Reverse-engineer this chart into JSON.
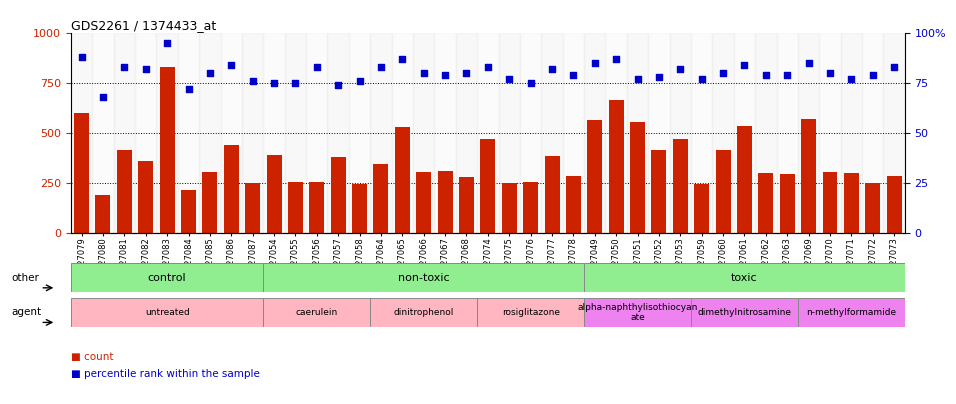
{
  "title": "GDS2261 / 1374433_at",
  "samples": [
    "GSM127079",
    "GSM127080",
    "GSM127081",
    "GSM127082",
    "GSM127083",
    "GSM127084",
    "GSM127085",
    "GSM127086",
    "GSM127087",
    "GSM127054",
    "GSM127055",
    "GSM127056",
    "GSM127057",
    "GSM127058",
    "GSM127064",
    "GSM127065",
    "GSM127066",
    "GSM127067",
    "GSM127068",
    "GSM127074",
    "GSM127075",
    "GSM127076",
    "GSM127077",
    "GSM127078",
    "GSM127049",
    "GSM127050",
    "GSM127051",
    "GSM127052",
    "GSM127053",
    "GSM127059",
    "GSM127060",
    "GSM127061",
    "GSM127062",
    "GSM127063",
    "GSM127069",
    "GSM127070",
    "GSM127071",
    "GSM127072",
    "GSM127073"
  ],
  "counts": [
    600,
    190,
    415,
    360,
    830,
    215,
    305,
    440,
    250,
    390,
    255,
    255,
    380,
    245,
    345,
    530,
    305,
    310,
    280,
    470,
    250,
    255,
    385,
    285,
    565,
    665,
    555,
    415,
    470,
    245,
    415,
    535,
    300,
    295,
    570,
    305,
    300,
    250,
    285
  ],
  "percentiles": [
    880,
    680,
    830,
    820,
    950,
    720,
    800,
    840,
    760,
    750,
    750,
    830,
    740,
    760,
    830,
    870,
    800,
    790,
    800,
    830,
    770,
    750,
    820,
    790,
    850,
    870,
    770,
    780,
    820,
    770,
    800,
    840,
    790,
    790,
    850,
    800,
    770,
    790,
    830
  ],
  "bar_color": "#cc2200",
  "dot_color": "#0000cc",
  "groups_other": [
    {
      "label": "control",
      "start": 0,
      "end": 9,
      "color": "#90ee90"
    },
    {
      "label": "non-toxic",
      "start": 9,
      "end": 24,
      "color": "#90ee90"
    },
    {
      "label": "toxic",
      "start": 24,
      "end": 39,
      "color": "#90ee90"
    }
  ],
  "groups_agent": [
    {
      "label": "untreated",
      "start": 0,
      "end": 9,
      "color": "#ffb6c1"
    },
    {
      "label": "caerulein",
      "start": 9,
      "end": 14,
      "color": "#ffb6c1"
    },
    {
      "label": "dinitrophenol",
      "start": 14,
      "end": 19,
      "color": "#ffb6c1"
    },
    {
      "label": "rosiglitazone",
      "start": 19,
      "end": 24,
      "color": "#ffb6c1"
    },
    {
      "label": "alpha-naphthylisothiocyan\nate",
      "start": 24,
      "end": 29,
      "color": "#ee82ee"
    },
    {
      "label": "dimethylnitrosamine",
      "start": 29,
      "end": 34,
      "color": "#ee82ee"
    },
    {
      "label": "n-methylformamide",
      "start": 34,
      "end": 39,
      "color": "#ee82ee"
    }
  ]
}
